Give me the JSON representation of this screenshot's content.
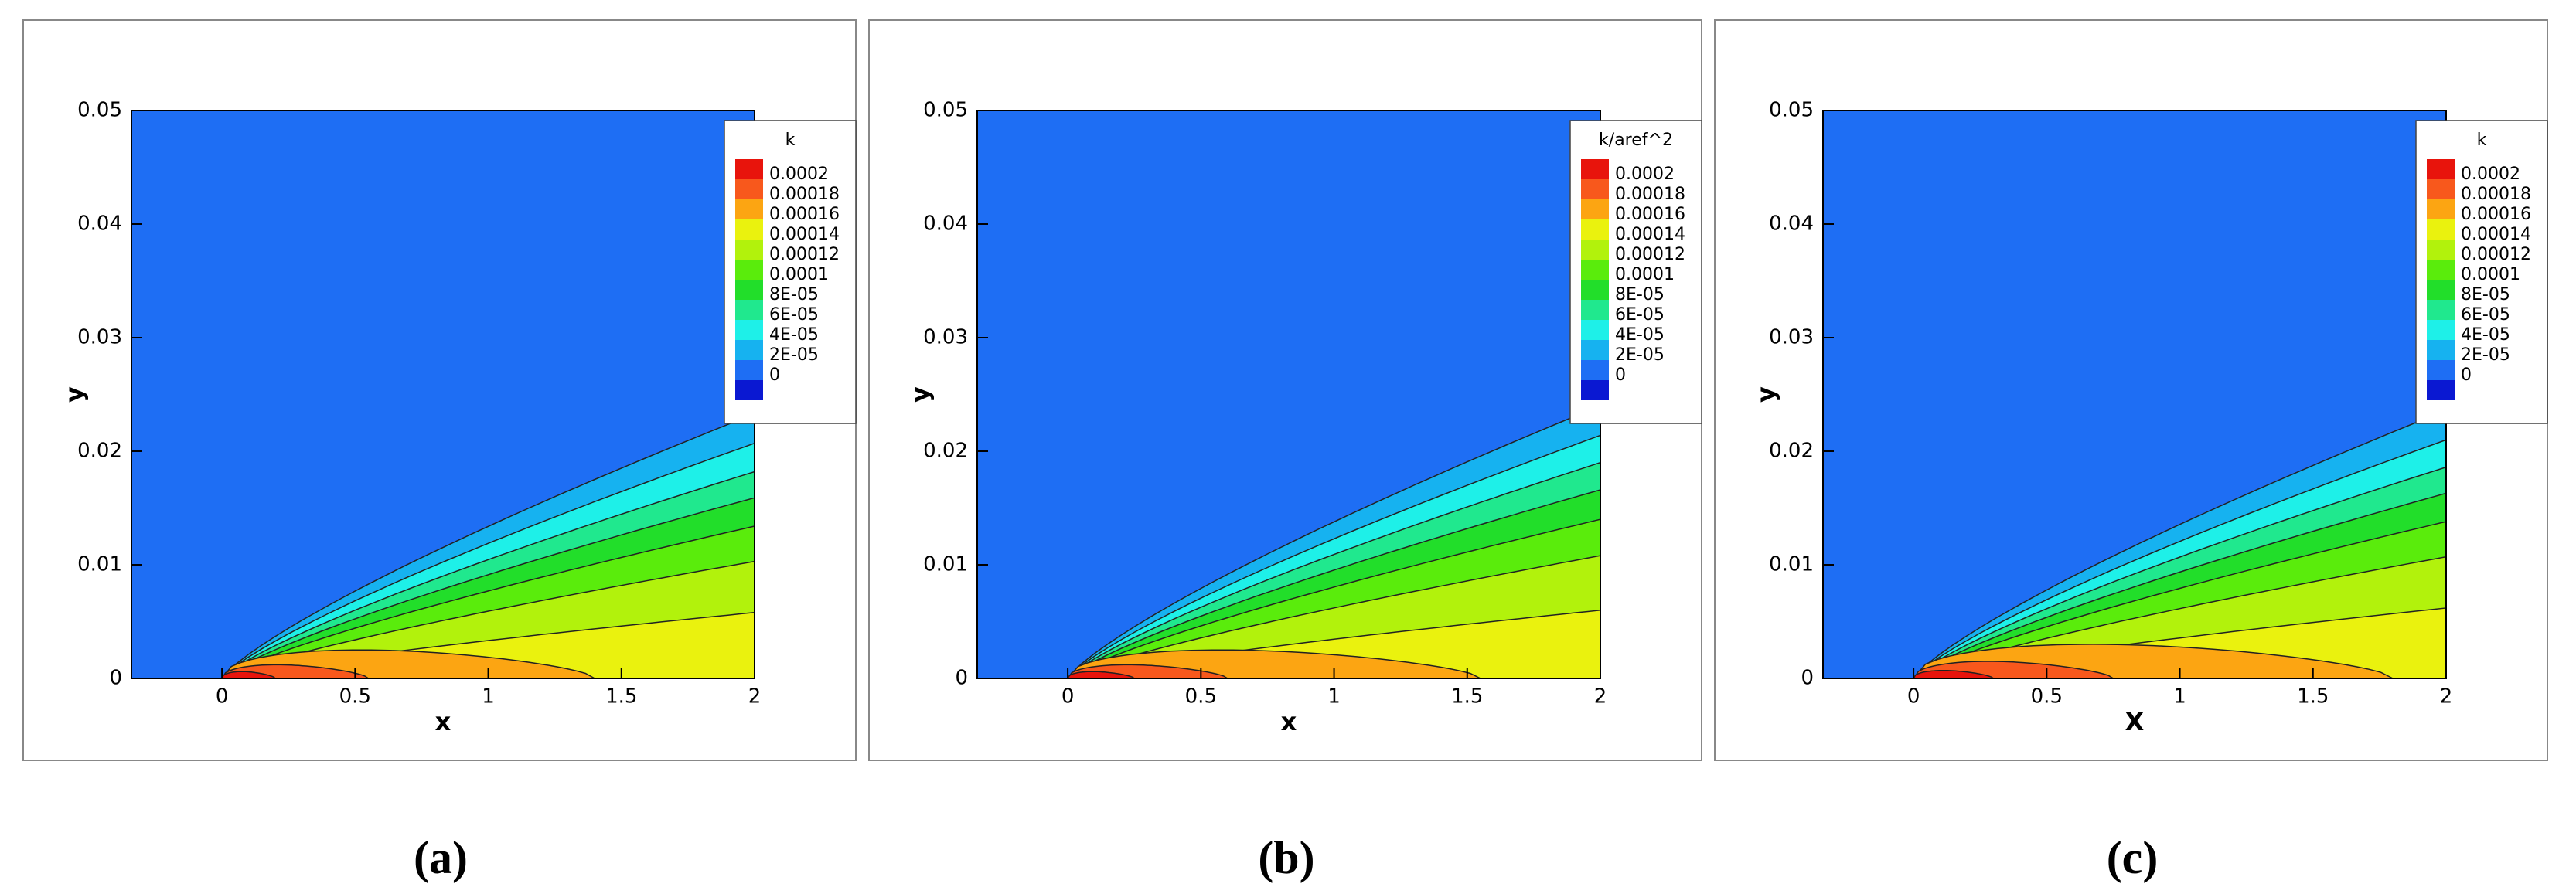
{
  "chart_data": [
    {
      "type": "contour",
      "caption": "(a)",
      "xlabel": "x",
      "ylabel": "y",
      "legend_title": "k",
      "xlim": [
        -0.34,
        2
      ],
      "ylim": [
        0,
        0.05
      ],
      "xticks": [
        0,
        0.5,
        1,
        1.5,
        2
      ],
      "yticks": [
        0,
        0.01,
        0.02,
        0.03,
        0.04,
        0.05
      ],
      "levels": [
        0.0002,
        0.00018,
        0.00016,
        0.00014,
        0.00012,
        0.0001,
        {
          "value": 8e-05,
          "label": "8E-05"
        },
        {
          "value": 6e-05,
          "label": "6E-05"
        },
        {
          "value": 4e-05,
          "label": "4E-05"
        },
        {
          "value": 2e-05,
          "label": "2E-05"
        },
        0
      ],
      "colors": [
        "#e8140c",
        "#f8581c",
        "#fca512",
        "#eaf20e",
        "#b2f20c",
        "#5aec0c",
        "#22de2a",
        "#20e88e",
        "#1ef0e8",
        "#16b2f0",
        "#1e6ef4",
        "#0a18d2"
      ]
    },
    {
      "type": "contour",
      "caption": "(b)",
      "xlabel": "x",
      "ylabel": "y",
      "legend_title": "k/aref^2",
      "xlim": [
        -0.34,
        2
      ],
      "ylim": [
        0,
        0.05
      ],
      "xticks": [
        0,
        0.5,
        1,
        1.5,
        2
      ],
      "yticks": [
        0,
        0.01,
        0.02,
        0.03,
        0.04,
        0.05
      ],
      "levels": [
        0.0002,
        0.00018,
        0.00016,
        0.00014,
        0.00012,
        0.0001,
        {
          "value": 8e-05,
          "label": "8E-05"
        },
        {
          "value": 6e-05,
          "label": "6E-05"
        },
        {
          "value": 4e-05,
          "label": "4E-05"
        },
        {
          "value": 2e-05,
          "label": "2E-05"
        },
        0
      ],
      "colors": [
        "#e8140c",
        "#f8581c",
        "#fca512",
        "#eaf20e",
        "#b2f20c",
        "#5aec0c",
        "#22de2a",
        "#20e88e",
        "#1ef0e8",
        "#16b2f0",
        "#1e6ef4",
        "#0a18d2"
      ]
    },
    {
      "type": "contour",
      "caption": "(c)",
      "xlabel": "X",
      "ylabel": "y",
      "legend_title": "k",
      "xlim": [
        -0.34,
        2
      ],
      "ylim": [
        0,
        0.05
      ],
      "xticks": [
        0,
        0.5,
        1,
        1.5,
        2
      ],
      "yticks": [
        0,
        0.01,
        0.02,
        0.03,
        0.04,
        0.05
      ],
      "levels": [
        0.0002,
        0.00018,
        0.00016,
        0.00014,
        0.00012,
        0.0001,
        {
          "value": 8e-05,
          "label": "8E-05"
        },
        {
          "value": 6e-05,
          "label": "6E-05"
        },
        {
          "value": 4e-05,
          "label": "4E-05"
        },
        {
          "value": 2e-05,
          "label": "2E-05"
        },
        0
      ],
      "colors": [
        "#e8140c",
        "#f8581c",
        "#fca512",
        "#eaf20e",
        "#b2f20c",
        "#5aec0c",
        "#22de2a",
        "#20e88e",
        "#1ef0e8",
        "#16b2f0",
        "#1e6ef4",
        "#0a18d2"
      ]
    }
  ]
}
